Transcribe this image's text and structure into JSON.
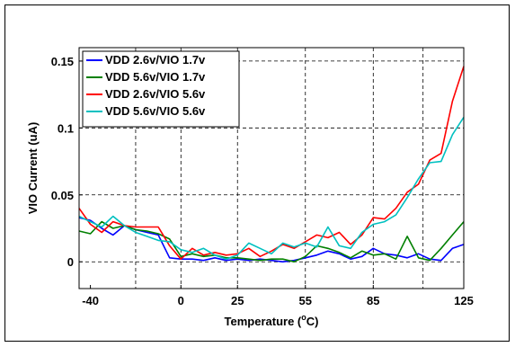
{
  "chart_data": {
    "type": "line",
    "xlabel": "Temperature (",
    "xlabel_sup": "o",
    "xlabel_tail": "C)",
    "ylabel": "VIO Current (uA)",
    "xlim": [
      -45,
      125
    ],
    "ylim": [
      -0.02,
      0.16
    ],
    "grid": true,
    "legend_position": "top-left",
    "x_ticks": [
      {
        "value": -40,
        "label": "-40"
      },
      {
        "value": 0,
        "label": "0"
      },
      {
        "value": 25,
        "label": "25"
      },
      {
        "value": 55,
        "label": "55"
      },
      {
        "value": 85,
        "label": "85"
      },
      {
        "value": 125,
        "label": "125"
      }
    ],
    "x_gridlines": [
      -20,
      0,
      25,
      55,
      85,
      107
    ],
    "y_ticks": [
      {
        "value": 0,
        "label": "0"
      },
      {
        "value": 0.05,
        "label": "0.05"
      },
      {
        "value": 0.1,
        "label": "0.1"
      },
      {
        "value": 0.15,
        "label": "0.15"
      }
    ],
    "series": [
      {
        "name": "VDD 2.6v/VIO 1.7v",
        "color": "#0000ff",
        "x": [
          -45,
          -40,
          -35,
          -30,
          -25,
          -20,
          -15,
          -10,
          -5,
          0,
          5,
          10,
          15,
          20,
          25,
          30,
          35,
          40,
          45,
          50,
          55,
          60,
          65,
          70,
          75,
          80,
          85,
          90,
          95,
          100,
          105,
          110,
          115,
          120,
          125
        ],
        "y": [
          0.033,
          0.031,
          0.025,
          0.02,
          0.027,
          0.024,
          0.022,
          0.02,
          0.003,
          0.002,
          0.002,
          0.001,
          0.003,
          0.001,
          0.002,
          0.001,
          0.002,
          0.001,
          0.0,
          0.001,
          0.003,
          0.005,
          0.008,
          0.006,
          0.002,
          0.004,
          0.01,
          0.006,
          0.005,
          0.003,
          0.006,
          0.002,
          0.001,
          0.01,
          0.013
        ]
      },
      {
        "name": "VDD 5.6v/VIO 1.7v",
        "color": "#008000",
        "x": [
          -45,
          -40,
          -35,
          -30,
          -25,
          -20,
          -15,
          -10,
          -5,
          0,
          5,
          10,
          15,
          20,
          25,
          30,
          35,
          40,
          45,
          50,
          55,
          60,
          65,
          70,
          75,
          80,
          85,
          90,
          95,
          100,
          105,
          110,
          115,
          120,
          125
        ],
        "y": [
          0.023,
          0.021,
          0.03,
          0.025,
          0.027,
          0.024,
          0.023,
          0.021,
          0.017,
          0.004,
          0.006,
          0.004,
          0.005,
          0.003,
          0.003,
          0.002,
          0.001,
          0.002,
          0.002,
          0.0,
          0.004,
          0.012,
          0.01,
          0.007,
          0.003,
          0.008,
          0.005,
          0.006,
          0.002,
          0.019,
          0.003,
          0.001,
          0.01,
          0.02,
          0.03
        ]
      },
      {
        "name": "VDD 2.6v/VIO 5.6v",
        "color": "#ff0000",
        "x": [
          -45,
          -40,
          -35,
          -30,
          -25,
          -20,
          -15,
          -10,
          -5,
          0,
          5,
          10,
          15,
          20,
          25,
          30,
          35,
          40,
          45,
          50,
          55,
          60,
          65,
          70,
          75,
          80,
          85,
          90,
          95,
          100,
          105,
          110,
          115,
          120,
          125
        ],
        "y": [
          0.04,
          0.028,
          0.022,
          0.03,
          0.027,
          0.026,
          0.026,
          0.026,
          0.012,
          0.002,
          0.01,
          0.005,
          0.007,
          0.005,
          0.006,
          0.01,
          0.004,
          0.008,
          0.013,
          0.01,
          0.015,
          0.02,
          0.018,
          0.022,
          0.013,
          0.02,
          0.033,
          0.032,
          0.04,
          0.052,
          0.058,
          0.076,
          0.081,
          0.12,
          0.146
        ]
      },
      {
        "name": "VDD 5.6v/VIO 5.6v",
        "color": "#00c0c0",
        "x": [
          -45,
          -40,
          -35,
          -30,
          -25,
          -20,
          -15,
          -10,
          -5,
          0,
          5,
          10,
          15,
          20,
          25,
          30,
          35,
          40,
          45,
          50,
          55,
          60,
          65,
          70,
          75,
          80,
          85,
          90,
          95,
          100,
          105,
          110,
          115,
          120,
          125
        ],
        "y": [
          0.034,
          0.03,
          0.026,
          0.034,
          0.027,
          0.022,
          0.019,
          0.016,
          0.015,
          0.009,
          0.007,
          0.01,
          0.005,
          0.002,
          0.005,
          0.014,
          0.01,
          0.006,
          0.014,
          0.011,
          0.014,
          0.011,
          0.026,
          0.012,
          0.01,
          0.022,
          0.028,
          0.03,
          0.035,
          0.048,
          0.062,
          0.074,
          0.075,
          0.095,
          0.108
        ]
      }
    ]
  }
}
